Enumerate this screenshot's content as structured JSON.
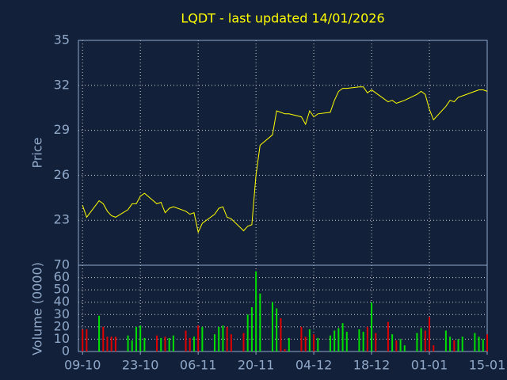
{
  "chart_data": [
    {
      "type": "line",
      "title": "LQDT - last updated 14/01/2026",
      "ylabel": "Price",
      "color": "#ffff00",
      "x": [
        0,
        1,
        4,
        5,
        6,
        7,
        8,
        11,
        12,
        13,
        14,
        15,
        18,
        19,
        20,
        21,
        22,
        25,
        26,
        27,
        28,
        29,
        32,
        33,
        34,
        35,
        36,
        39,
        40,
        41,
        42,
        43,
        46,
        47,
        48,
        49,
        50,
        53,
        54,
        55,
        56,
        57,
        60,
        61,
        62,
        63,
        64,
        67,
        68,
        69,
        70,
        71,
        74,
        75,
        76,
        77,
        78,
        81,
        82,
        83,
        84,
        85,
        88,
        89,
        90,
        91,
        92,
        95,
        96,
        97,
        98
      ],
      "values": [
        24.0,
        23.2,
        24.3,
        24.1,
        23.6,
        23.3,
        23.2,
        23.7,
        24.1,
        24.1,
        24.6,
        24.8,
        24.1,
        24.2,
        23.5,
        23.8,
        23.9,
        23.6,
        23.4,
        23.5,
        22.2,
        22.8,
        23.4,
        23.8,
        23.9,
        23.2,
        23.1,
        22.3,
        22.6,
        22.7,
        26.0,
        28.0,
        28.7,
        30.3,
        30.2,
        30.1,
        30.1,
        29.9,
        29.4,
        30.3,
        29.9,
        30.1,
        30.2,
        31.0,
        31.6,
        31.8,
        31.8,
        31.9,
        31.9,
        31.5,
        31.7,
        31.5,
        30.9,
        31.0,
        30.8,
        30.9,
        31.0,
        31.4,
        31.6,
        31.4,
        30.4,
        29.7,
        30.6,
        31.0,
        30.9,
        31.2,
        31.3,
        31.6,
        31.7,
        31.7,
        31.6
      ],
      "xlim": [
        -1,
        98
      ],
      "xticks": [
        0,
        14,
        28,
        42,
        56,
        70,
        84,
        98
      ],
      "ylim": [
        20,
        35
      ],
      "yticks": [
        23,
        26,
        29,
        32,
        35
      ],
      "grid": true
    },
    {
      "type": "bar",
      "ylabel": "Volume (0000)",
      "up_color": "#00e000",
      "down_color": "#e00000",
      "x": [
        0,
        1,
        4,
        5,
        6,
        7,
        8,
        11,
        12,
        13,
        14,
        15,
        18,
        19,
        20,
        21,
        22,
        25,
        26,
        27,
        28,
        29,
        32,
        33,
        34,
        35,
        36,
        39,
        40,
        41,
        42,
        43,
        46,
        47,
        48,
        49,
        50,
        53,
        54,
        55,
        56,
        57,
        60,
        61,
        62,
        63,
        64,
        67,
        68,
        69,
        70,
        71,
        74,
        75,
        76,
        77,
        78,
        81,
        82,
        83,
        84,
        85,
        88,
        89,
        90,
        91,
        92,
        95,
        96,
        97,
        98
      ],
      "values": [
        18,
        18,
        29,
        20,
        12,
        12,
        12,
        13,
        9,
        20,
        21,
        11,
        13,
        11,
        12,
        11,
        13,
        17,
        11,
        12,
        21,
        20,
        14,
        20,
        21,
        20,
        14,
        15,
        30,
        36,
        65,
        47,
        40,
        35,
        27,
        2,
        11,
        20,
        12,
        18,
        14,
        11,
        13,
        17,
        19,
        23,
        16,
        18,
        16,
        20,
        40,
        15,
        24,
        14,
        9,
        10,
        5,
        15,
        19,
        17,
        28,
        5,
        17,
        12,
        9,
        10,
        12,
        15,
        12,
        10,
        14
      ],
      "xlim": [
        -1,
        98
      ],
      "xticks": [
        {
          "value": 0,
          "label": "09-10"
        },
        {
          "value": 14,
          "label": "23-10"
        },
        {
          "value": 28,
          "label": "06-11"
        },
        {
          "value": 42,
          "label": "20-11"
        },
        {
          "value": 56,
          "label": "04-12"
        },
        {
          "value": 70,
          "label": "18-12"
        },
        {
          "value": 84,
          "label": "01-01"
        },
        {
          "value": 98,
          "label": "15-01"
        }
      ],
      "ylim": [
        0,
        70
      ],
      "yticks": [
        0,
        10,
        20,
        30,
        40,
        50,
        60,
        70
      ],
      "grid": true
    }
  ]
}
